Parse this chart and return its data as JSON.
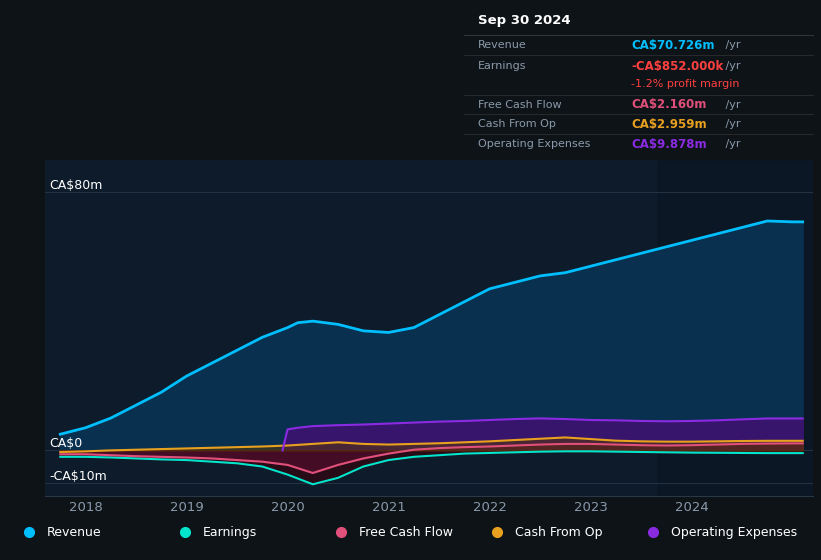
{
  "background_color": "#0e1318",
  "plot_bg_color": "#0d1b2a",
  "grid_color": "#2a3a4a",
  "text_color": "#8a9aaa",
  "white_color": "#ffffff",
  "ylim": [
    -14,
    90
  ],
  "xlim_start": 2017.6,
  "xlim_end": 2025.2,
  "ytick_vals": [
    -10,
    0,
    80
  ],
  "ytick_labels": [
    "-CA$10m",
    "CA$0",
    "CA$80m"
  ],
  "xticks": [
    2018,
    2019,
    2020,
    2021,
    2022,
    2023,
    2024
  ],
  "xtick_labels": [
    "2018",
    "2019",
    "2020",
    "2021",
    "2022",
    "2023",
    "2024"
  ],
  "revenue_color": "#00bfff",
  "revenue_fill_color": "#0a3050",
  "earnings_color": "#00e5cc",
  "free_cash_flow_color": "#e0507a",
  "cash_from_op_color": "#e8a020",
  "operating_expenses_color": "#8a2be2",
  "operating_expenses_fill_color": "#3d1270",
  "revenue_x": [
    2017.75,
    2018.0,
    2018.25,
    2018.5,
    2018.75,
    2019.0,
    2019.25,
    2019.5,
    2019.75,
    2020.0,
    2020.1,
    2020.25,
    2020.5,
    2020.75,
    2021.0,
    2021.25,
    2021.5,
    2021.75,
    2022.0,
    2022.25,
    2022.5,
    2022.75,
    2023.0,
    2023.25,
    2023.5,
    2023.75,
    2024.0,
    2024.25,
    2024.5,
    2024.75,
    2025.0,
    2025.1
  ],
  "revenue_y": [
    5,
    7,
    10,
    14,
    18,
    23,
    27,
    31,
    35,
    38,
    39.5,
    40,
    39,
    37,
    36.5,
    38,
    42,
    46,
    50,
    52,
    54,
    55,
    57,
    59,
    61,
    63,
    65,
    67,
    69,
    71,
    70.726,
    70.726
  ],
  "earnings_x": [
    2017.75,
    2018.0,
    2018.25,
    2018.5,
    2018.75,
    2019.0,
    2019.25,
    2019.5,
    2019.75,
    2020.0,
    2020.25,
    2020.5,
    2020.75,
    2021.0,
    2021.25,
    2021.5,
    2021.75,
    2022.0,
    2022.25,
    2022.5,
    2022.75,
    2023.0,
    2023.25,
    2023.5,
    2023.75,
    2024.0,
    2024.25,
    2024.5,
    2024.75,
    2025.0,
    2025.1
  ],
  "earnings_y": [
    -2.0,
    -2.0,
    -2.2,
    -2.5,
    -2.8,
    -3.0,
    -3.5,
    -4.0,
    -5.0,
    -7.5,
    -10.5,
    -8.5,
    -5.0,
    -3.0,
    -2.0,
    -1.5,
    -1.0,
    -0.8,
    -0.6,
    -0.4,
    -0.3,
    -0.3,
    -0.4,
    -0.5,
    -0.6,
    -0.7,
    -0.75,
    -0.8,
    -0.852,
    -0.852,
    -0.852
  ],
  "free_cash_flow_x": [
    2017.75,
    2018.0,
    2018.25,
    2018.5,
    2018.75,
    2019.0,
    2019.25,
    2019.5,
    2019.75,
    2020.0,
    2020.25,
    2020.5,
    2020.75,
    2021.0,
    2021.25,
    2021.5,
    2021.75,
    2022.0,
    2022.25,
    2022.5,
    2022.75,
    2023.0,
    2023.25,
    2023.5,
    2023.75,
    2024.0,
    2024.25,
    2024.5,
    2024.75,
    2025.0,
    2025.1
  ],
  "free_cash_flow_y": [
    -1.2,
    -1.2,
    -1.5,
    -1.8,
    -2.0,
    -2.2,
    -2.5,
    -3.0,
    -3.5,
    -4.5,
    -7.0,
    -4.5,
    -2.5,
    -1.0,
    0.2,
    0.7,
    1.0,
    1.2,
    1.5,
    1.8,
    2.0,
    2.0,
    1.8,
    1.6,
    1.5,
    1.6,
    1.8,
    2.0,
    2.1,
    2.16,
    2.16
  ],
  "cash_from_op_x": [
    2017.75,
    2018.0,
    2018.25,
    2018.5,
    2018.75,
    2019.0,
    2019.25,
    2019.5,
    2019.75,
    2020.0,
    2020.25,
    2020.5,
    2020.75,
    2021.0,
    2021.25,
    2021.5,
    2021.75,
    2022.0,
    2022.25,
    2022.5,
    2022.75,
    2023.0,
    2023.25,
    2023.5,
    2023.75,
    2024.0,
    2024.25,
    2024.5,
    2024.75,
    2025.0,
    2025.1
  ],
  "cash_from_op_y": [
    -0.5,
    -0.3,
    0.0,
    0.2,
    0.4,
    0.6,
    0.8,
    1.0,
    1.2,
    1.5,
    2.0,
    2.5,
    2.0,
    1.8,
    2.0,
    2.2,
    2.5,
    2.8,
    3.2,
    3.6,
    4.0,
    3.5,
    3.0,
    2.8,
    2.7,
    2.7,
    2.8,
    2.9,
    2.959,
    2.959,
    2.959
  ],
  "op_expenses_x": [
    2019.95,
    2020.0,
    2020.1,
    2020.25,
    2020.5,
    2020.75,
    2021.0,
    2021.25,
    2021.5,
    2021.75,
    2022.0,
    2022.25,
    2022.5,
    2022.75,
    2023.0,
    2023.25,
    2023.5,
    2023.75,
    2024.0,
    2024.25,
    2024.5,
    2024.75,
    2025.0,
    2025.1
  ],
  "op_expenses_y": [
    0.0,
    6.5,
    7.0,
    7.5,
    7.8,
    8.0,
    8.3,
    8.6,
    8.9,
    9.1,
    9.4,
    9.7,
    9.9,
    9.7,
    9.4,
    9.3,
    9.1,
    9.0,
    9.1,
    9.3,
    9.6,
    9.878,
    9.878,
    9.878
  ],
  "shaded_region_start": 2023.67,
  "info_box": {
    "title": "Sep 30 2024",
    "rows": [
      {
        "label": "Revenue",
        "value": "CA$70.726m",
        "value_color": "#00bfff",
        "suffix": " /yr",
        "extra": null,
        "extra_color": null
      },
      {
        "label": "Earnings",
        "value": "-CA$852.000k",
        "value_color": "#ff4040",
        "suffix": " /yr",
        "extra": "-1.2% profit margin",
        "extra_color": "#ff4040"
      },
      {
        "label": "Free Cash Flow",
        "value": "CA$2.160m",
        "value_color": "#e0507a",
        "suffix": " /yr",
        "extra": null,
        "extra_color": null
      },
      {
        "label": "Cash From Op",
        "value": "CA$2.959m",
        "value_color": "#e8a020",
        "suffix": " /yr",
        "extra": null,
        "extra_color": null
      },
      {
        "label": "Operating Expenses",
        "value": "CA$9.878m",
        "value_color": "#8a2be2",
        "suffix": " /yr",
        "extra": null,
        "extra_color": null
      }
    ]
  },
  "legend_items": [
    {
      "label": "Revenue",
      "color": "#00bfff"
    },
    {
      "label": "Earnings",
      "color": "#00e5cc"
    },
    {
      "label": "Free Cash Flow",
      "color": "#e0507a"
    },
    {
      "label": "Cash From Op",
      "color": "#e8a020"
    },
    {
      "label": "Operating Expenses",
      "color": "#8a2be2"
    }
  ]
}
